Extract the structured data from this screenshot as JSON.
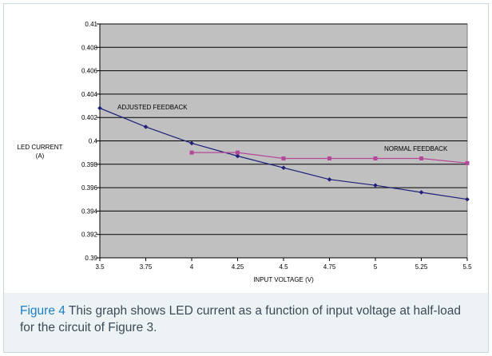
{
  "chart_data": {
    "type": "line",
    "title": "",
    "xlabel": "INPUT VOLTAGE (V)",
    "ylabel": [
      "LED CURRENT",
      "(A)"
    ],
    "xlim": [
      3.5,
      5.5
    ],
    "ylim": [
      0.39,
      0.41
    ],
    "x_ticks": [
      3.5,
      3.75,
      4,
      4.25,
      4.5,
      4.75,
      5,
      5.25,
      5.5
    ],
    "x_tick_labels": [
      "3.5",
      "3.75",
      "4",
      "4.25",
      "4.5",
      "4.75",
      "5",
      "5.25",
      "5.5"
    ],
    "y_ticks": [
      0.39,
      0.392,
      0.394,
      0.396,
      0.398,
      0.4,
      0.402,
      0.404,
      0.406,
      0.408,
      0.41
    ],
    "y_tick_labels": [
      "0.39",
      "0.392",
      "0.394",
      "0.396",
      "0.398",
      "0.4",
      "0.402",
      "0.404",
      "0.406",
      "0.408",
      "0.41"
    ],
    "grid": "horizontal",
    "plot_background": "#c0c0c0",
    "series": [
      {
        "name": "ADJUSTED FEEDBACK",
        "color": "#1f1f7a",
        "marker": "diamond",
        "x": [
          3.5,
          3.75,
          4,
          4.25,
          4.5,
          4.75,
          5,
          5.25,
          5.5
        ],
        "y": [
          0.4028,
          0.4012,
          0.3998,
          0.3987,
          0.3977,
          0.3967,
          0.3962,
          0.3956,
          0.395
        ]
      },
      {
        "name": "NORMAL FEEDBACK",
        "color": "#b5479a",
        "marker": "square",
        "x": [
          4,
          4.25,
          4.5,
          4.75,
          5,
          5.25,
          5.5
        ],
        "y": [
          0.399,
          0.399,
          0.3985,
          0.3985,
          0.3985,
          0.3985,
          0.3981
        ]
      }
    ]
  },
  "caption": {
    "label": "Figure 4",
    "text": " This graph shows LED current as a function of input voltage at half-load for the circuit of Figure 3."
  }
}
